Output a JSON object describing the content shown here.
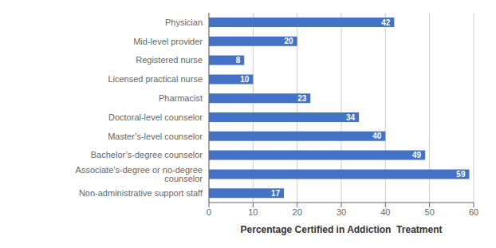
{
  "chart_data": {
    "type": "bar",
    "orientation": "horizontal",
    "categories": [
      "Physician",
      "Mid-level provider",
      "Registered nurse",
      "Licensed practical nurse",
      "Pharmacist",
      "Doctoral-level counselor",
      "Master’s-level counselor",
      "Bachelor’s-degree counselor",
      "Associate’s-degree or no-degree counselor",
      "Non-administrative support staff"
    ],
    "values": [
      42,
      20,
      8,
      10,
      23,
      34,
      40,
      49,
      59,
      17
    ],
    "color": "#4472C4",
    "xlabel": "Percentage Certified in Addiction  Treatment",
    "xlim": [
      0,
      60
    ],
    "xticks": [
      0,
      10,
      20,
      30,
      40,
      50,
      60
    ],
    "grid": true,
    "data_labels": true
  }
}
